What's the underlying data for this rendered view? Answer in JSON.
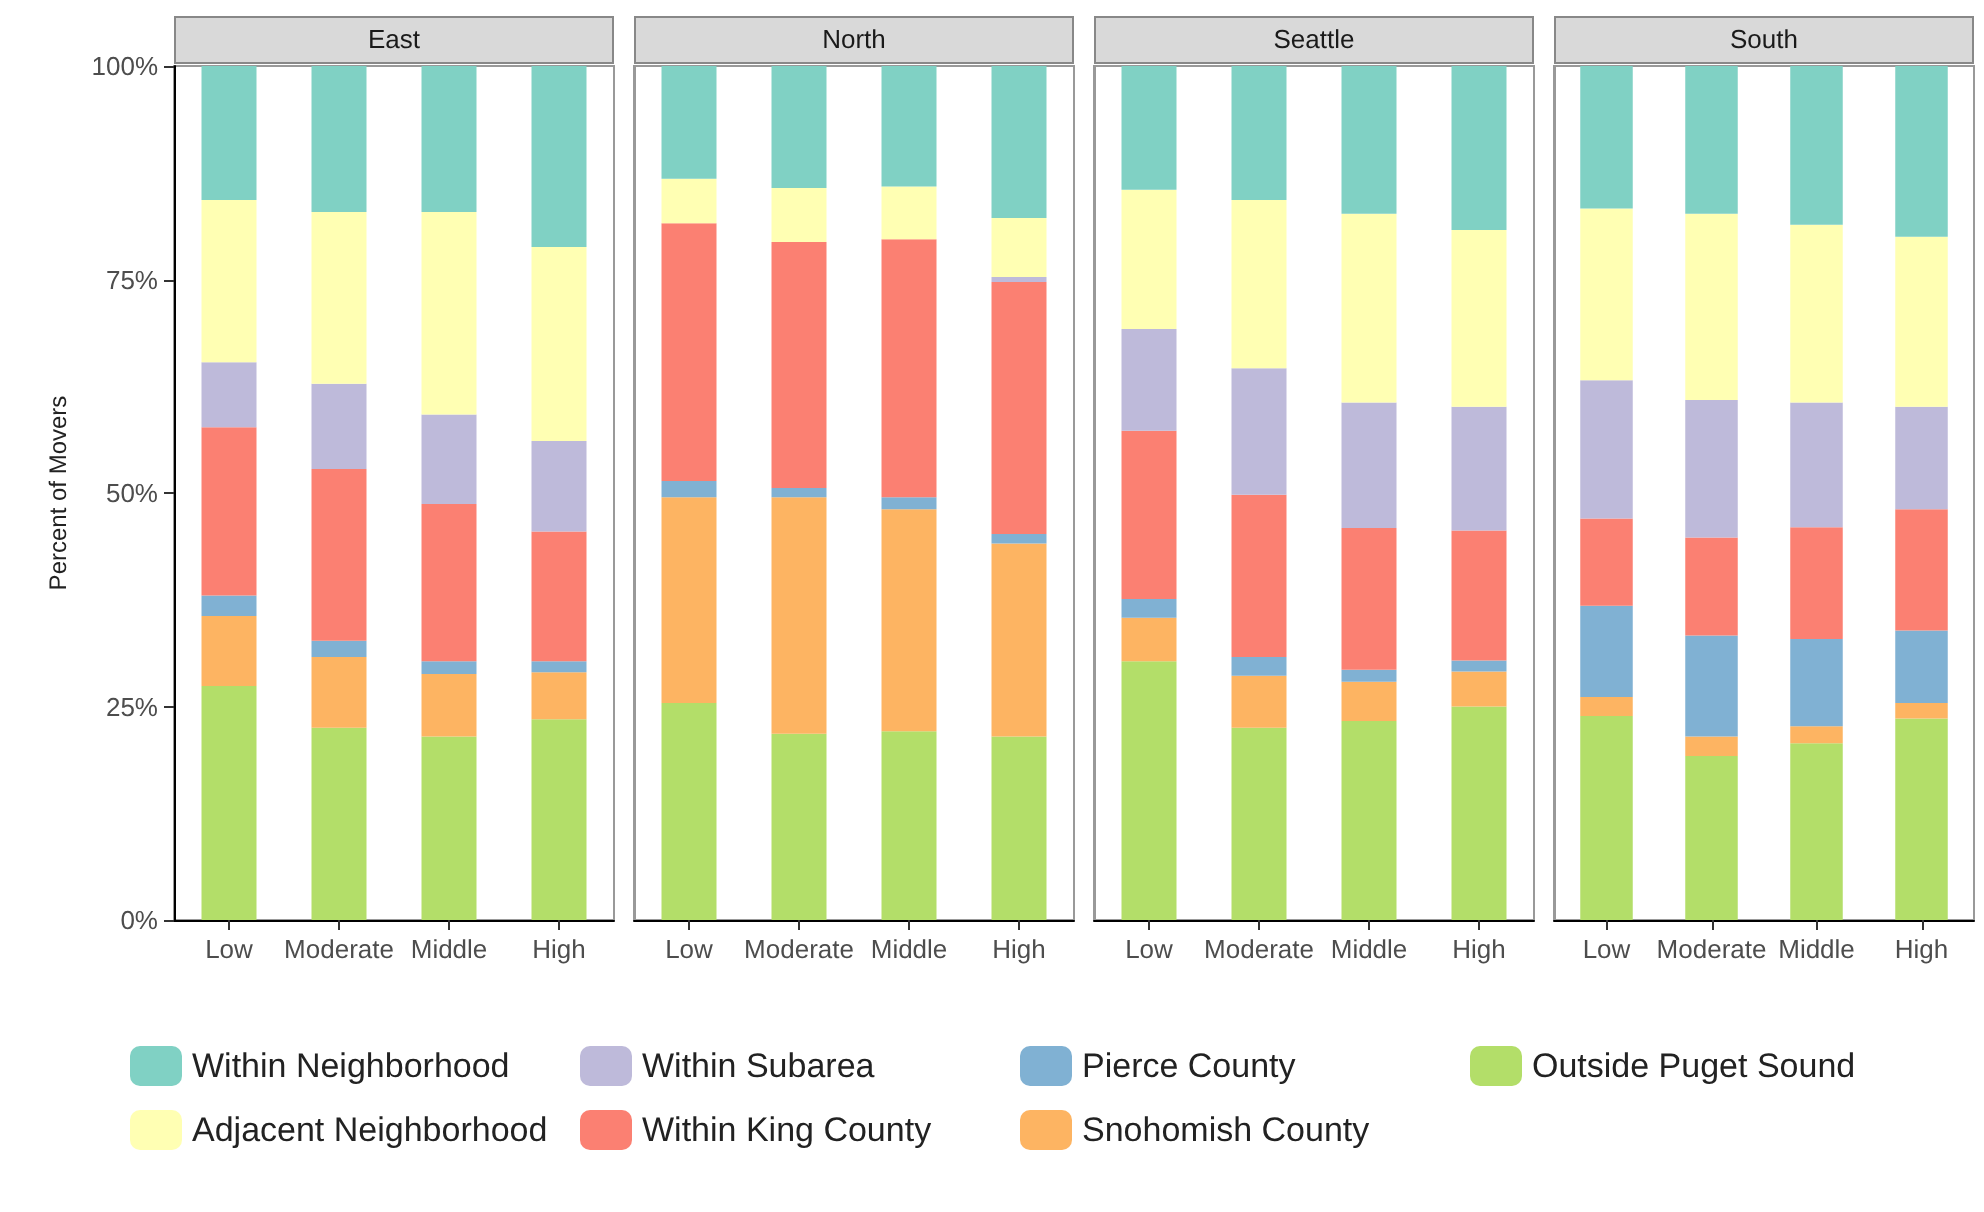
{
  "chart_data": [
    {
      "type": "bar",
      "title": "East",
      "ylabel": "Percent of Movers",
      "categories": [
        "Low",
        "Moderate",
        "Middle",
        "High"
      ],
      "stacked": true,
      "legend": "bottom",
      "ylim": [
        0,
        100
      ],
      "yticks": [
        {
          "value": 0,
          "label": "0%"
        },
        {
          "value": 25,
          "label": "25%"
        },
        {
          "value": 50,
          "label": "50%"
        },
        {
          "value": 75,
          "label": "75%"
        },
        {
          "value": 100,
          "label": "100%"
        }
      ],
      "series": [
        {
          "name": "Outside Puget Sound",
          "color": "#b3de69",
          "values": [
            27.4,
            22.5,
            21.5,
            23.5
          ]
        },
        {
          "name": "Snohomish County",
          "color": "#fdb462",
          "values": [
            8.2,
            8.3,
            7.3,
            5.5
          ]
        },
        {
          "name": "Pierce County",
          "color": "#80b1d3",
          "values": [
            2.4,
            1.9,
            1.5,
            1.3
          ]
        },
        {
          "name": "Within King County",
          "color": "#fb8072",
          "values": [
            19.7,
            20.1,
            18.4,
            15.2
          ]
        },
        {
          "name": "Within Subarea",
          "color": "#bebada",
          "values": [
            7.6,
            10.0,
            10.5,
            10.6
          ]
        },
        {
          "name": "Adjacent Neighborhood",
          "color": "#ffffb3",
          "values": [
            19.0,
            20.1,
            23.7,
            22.7
          ]
        },
        {
          "name": "Within Neighborhood",
          "color": "#80d1c4",
          "values": [
            15.7,
            17.1,
            17.1,
            21.2
          ]
        }
      ]
    },
    {
      "type": "bar",
      "title": "North",
      "categories": [
        "Low",
        "Moderate",
        "Middle",
        "High"
      ],
      "stacked": true,
      "tick_labels": "x",
      "ylim": [
        0,
        100
      ],
      "series": [
        {
          "color": "#b3de69",
          "values": [
            25.4,
            21.8,
            22.1,
            21.5
          ]
        },
        {
          "color": "#fdb462",
          "values": [
            24.1,
            27.7,
            26.0,
            22.6
          ]
        },
        {
          "color": "#80b1d3",
          "values": [
            1.9,
            1.1,
            1.4,
            1.1
          ]
        },
        {
          "color": "#fb8072",
          "values": [
            30.2,
            28.8,
            30.2,
            29.5
          ]
        },
        {
          "color": "#bebada",
          "values": [
            0,
            0,
            0,
            0.6
          ]
        },
        {
          "color": "#ffffb3",
          "values": [
            5.2,
            6.3,
            6.2,
            6.9
          ]
        },
        {
          "color": "#80d1c4",
          "values": [
            13.2,
            14.3,
            14.1,
            17.8
          ]
        }
      ]
    },
    {
      "type": "bar",
      "title": "Seattle",
      "categories": [
        "Low",
        "Moderate",
        "Middle",
        "High"
      ],
      "stacked": true,
      "tick_labels": "x",
      "ylim": [
        0,
        100
      ],
      "series": [
        {
          "color": "#b3de69",
          "values": [
            30.3,
            22.5,
            23.3,
            25.0
          ]
        },
        {
          "color": "#fdb462",
          "values": [
            5.1,
            6.1,
            4.6,
            4.1
          ]
        },
        {
          "color": "#80b1d3",
          "values": [
            2.2,
            2.2,
            1.4,
            1.3
          ]
        },
        {
          "color": "#fb8072",
          "values": [
            19.7,
            19.0,
            16.6,
            15.2
          ]
        },
        {
          "color": "#bebada",
          "values": [
            11.9,
            14.8,
            14.7,
            14.5
          ]
        },
        {
          "color": "#ffffb3",
          "values": [
            16.3,
            19.7,
            22.1,
            20.7
          ]
        },
        {
          "color": "#80d1c4",
          "values": [
            14.5,
            15.7,
            17.3,
            19.2
          ]
        }
      ]
    },
    {
      "type": "bar",
      "title": "South",
      "categories": [
        "Low",
        "Moderate",
        "Middle",
        "High"
      ],
      "stacked": true,
      "tick_labels": "x",
      "ylim": [
        0,
        100
      ],
      "series": [
        {
          "color": "#b3de69",
          "values": [
            23.9,
            19.2,
            20.7,
            23.6
          ]
        },
        {
          "color": "#fdb462",
          "values": [
            2.2,
            2.3,
            2.0,
            1.8
          ]
        },
        {
          "color": "#80b1d3",
          "values": [
            10.7,
            11.8,
            10.2,
            8.5
          ]
        },
        {
          "color": "#fb8072",
          "values": [
            10.2,
            11.5,
            13.1,
            14.2
          ]
        },
        {
          "color": "#bebada",
          "values": [
            16.2,
            16.1,
            14.6,
            12.0
          ]
        },
        {
          "color": "#ffffb3",
          "values": [
            20.1,
            21.8,
            20.8,
            19.9
          ]
        },
        {
          "color": "#80d1c4",
          "values": [
            16.7,
            17.3,
            18.6,
            20.0
          ]
        }
      ]
    }
  ]
}
